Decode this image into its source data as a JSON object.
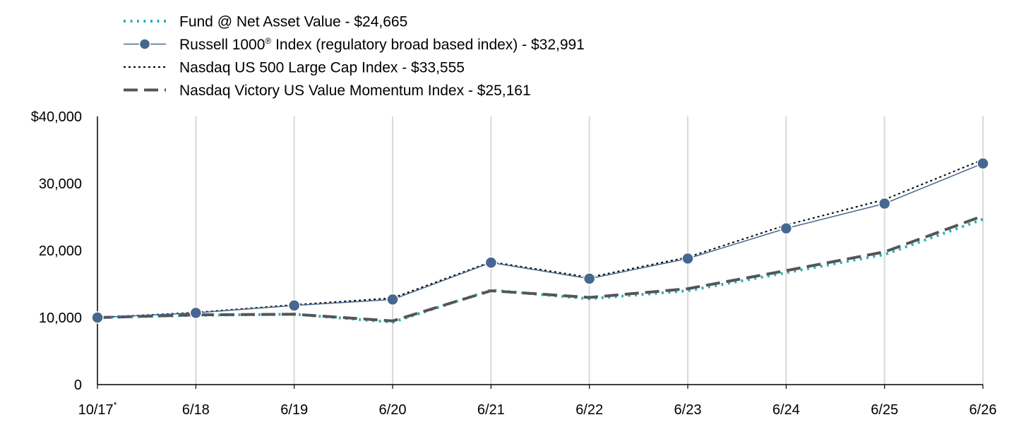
{
  "chart_data": {
    "type": "line",
    "title": "",
    "xlabel": "",
    "ylabel": "",
    "categories": [
      "10/17",
      "6/18",
      "6/19",
      "6/20",
      "6/21",
      "6/22",
      "6/23",
      "6/24",
      "6/25",
      "6/26"
    ],
    "first_category_marker": "*",
    "ylim": [
      0,
      40000
    ],
    "yticks": [
      0,
      10000,
      20000,
      30000,
      40000
    ],
    "ytick_labels": [
      "0",
      "10,000",
      "20,000",
      "30,000",
      "$40,000"
    ],
    "grid": "vertical",
    "legend_position": "top-left",
    "series": [
      {
        "id": "fund",
        "legend": {
          "prefix": "Fund @ Net Asset Value - $24,665",
          "sup": "",
          "suffix": ""
        },
        "color": "#2ab3b8",
        "style": "dotted",
        "markers": false,
        "values": [
          10000,
          10350,
          10500,
          9300,
          14100,
          12800,
          14000,
          16700,
          19400,
          24665
        ]
      },
      {
        "id": "russell",
        "legend": {
          "prefix": "Russell 1000",
          "sup": "®",
          "suffix": " Index (regulatory broad based index) - $32,991"
        },
        "color": "#46678f",
        "style": "solid",
        "markers": true,
        "values": [
          10000,
          10700,
          11800,
          12700,
          18200,
          15800,
          18800,
          23300,
          27000,
          32991
        ]
      },
      {
        "id": "nasdaq500",
        "legend": {
          "prefix": "Nasdaq US 500 Large Cap Index - $33,555",
          "sup": "",
          "suffix": ""
        },
        "color": "#000000",
        "style": "short-dotted",
        "markers": false,
        "values": [
          10000,
          10750,
          11900,
          12900,
          18300,
          16000,
          19000,
          23800,
          27600,
          33555
        ]
      },
      {
        "id": "victory",
        "legend": {
          "prefix": "Nasdaq Victory US Value Momentum Index - $25,161",
          "sup": "",
          "suffix": ""
        },
        "color": "#555555",
        "style": "dashed",
        "markers": false,
        "values": [
          10000,
          10400,
          10500,
          9500,
          14000,
          13000,
          14300,
          17000,
          19800,
          25161
        ]
      }
    ]
  }
}
